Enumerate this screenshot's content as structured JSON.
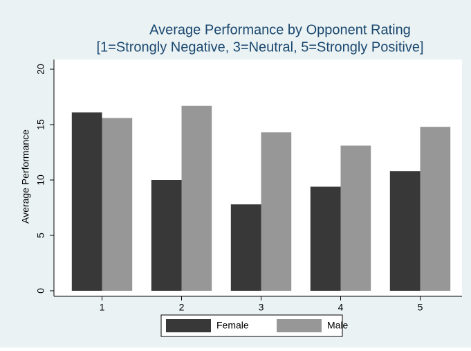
{
  "chart_data": {
    "type": "bar",
    "title": [
      "Average Performance by Opponent Rating",
      "[1=Strongly Negative, 3=Neutral, 5=Strongly Positive]"
    ],
    "y_label": "Average Performance",
    "categories": [
      "1",
      "2",
      "3",
      "4",
      "5"
    ],
    "series": [
      {
        "name": "Female",
        "color": "#383838",
        "values": [
          16.1,
          10.0,
          7.8,
          9.4,
          10.8
        ]
      },
      {
        "name": "Male",
        "color": "#979797",
        "values": [
          15.6,
          16.7,
          14.3,
          13.1,
          14.8
        ]
      }
    ],
    "ylim": [
      0,
      20
    ],
    "yticks": [
      0,
      5,
      10,
      15,
      20
    ],
    "grid": false,
    "legend": "bottom"
  }
}
